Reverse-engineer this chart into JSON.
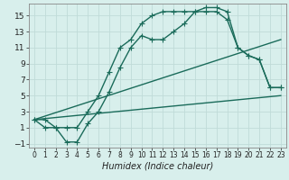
{
  "title": "",
  "xlabel": "Humidex (Indice chaleur)",
  "bg_color": "#d8efec",
  "line_color": "#1a6b5a",
  "grid_color": "#c0dbd8",
  "xlim": [
    -0.5,
    23.5
  ],
  "ylim": [
    -1.5,
    16.5
  ],
  "xticks": [
    0,
    1,
    2,
    3,
    4,
    5,
    6,
    7,
    8,
    9,
    10,
    11,
    12,
    13,
    14,
    15,
    16,
    17,
    18,
    19,
    20,
    21,
    22,
    23
  ],
  "yticks": [
    -1,
    1,
    3,
    5,
    7,
    9,
    11,
    13,
    15
  ],
  "line1_x": [
    0,
    1,
    2,
    3,
    4,
    5,
    6,
    7,
    8,
    9,
    10,
    11,
    12,
    13,
    14,
    15,
    16,
    17,
    18,
    19,
    20,
    21,
    22,
    23
  ],
  "line1_y": [
    2,
    2,
    1,
    1,
    1,
    3,
    5,
    8,
    11,
    12,
    14,
    15,
    15.5,
    15.5,
    15.5,
    15.5,
    15.5,
    15.5,
    14.5,
    11,
    10,
    9.5,
    6,
    6
  ],
  "line2_x": [
    0,
    1,
    2,
    3,
    4,
    5,
    6,
    7,
    8,
    9,
    10,
    11,
    12,
    13,
    14,
    15,
    16,
    17,
    18,
    19,
    20,
    21,
    22,
    23
  ],
  "line2_y": [
    2,
    1,
    1,
    -0.8,
    -0.8,
    1.5,
    3,
    5.5,
    8.5,
    11,
    12.5,
    12,
    12,
    13,
    14,
    15.5,
    16,
    16,
    15.5,
    11,
    10,
    9.5,
    6,
    6
  ],
  "line3_x": [
    0,
    23
  ],
  "line3_y": [
    2,
    5
  ],
  "line4_x": [
    0,
    23
  ],
  "line4_y": [
    2,
    12
  ],
  "marker": "+",
  "markersize": 4,
  "linewidth": 1.0,
  "font_color": "#222222",
  "xlabel_fontsize": 7,
  "tick_fontsize_x": 5.5,
  "tick_fontsize_y": 6.5
}
